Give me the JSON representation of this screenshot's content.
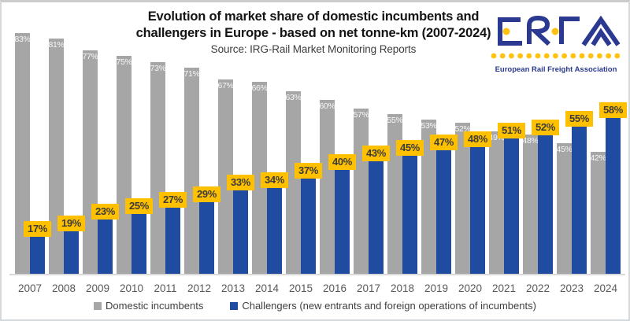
{
  "header": {
    "title_line1": "Evolution of market share of domestic incumbents and",
    "title_line2": "challengers in Europe - based on net tonne-km (2007-2024)",
    "source": "Source:  IRG-Rail Market Monitoring Reports"
  },
  "logo": {
    "name": "ERFA",
    "caption": "European Rail Freight Association",
    "blue": "#2b3990",
    "yellow": "#ffc20e",
    "dot_count": 15
  },
  "chart_data": {
    "type": "bar",
    "title": "Evolution of market share of domestic incumbents and challengers in Europe - based on net tonne-km (2007-2024)",
    "subtitle": "Source: IRG-Rail Market Monitoring Reports",
    "categories": [
      "2007",
      "2008",
      "2009",
      "2010",
      "2011",
      "2012",
      "2013",
      "2014",
      "2015",
      "2016",
      "2017",
      "2018",
      "2019",
      "2020",
      "2021",
      "2022",
      "2023",
      "2024"
    ],
    "series": [
      {
        "name": "Domestic incumbents",
        "color": "#a6a6a6",
        "label_style": "white-inside-top",
        "values": [
          83,
          81,
          77,
          75,
          73,
          71,
          67,
          66,
          63,
          60,
          57,
          55,
          53,
          52,
          49,
          48,
          45,
          42
        ]
      },
      {
        "name": "Challengers (new entrants and foreign operations of incumbents)",
        "color": "#1f4ba0",
        "label_bg": "#ffc000",
        "label_color": "#3b3b3b",
        "label_style": "yellow-badge-at-top",
        "values": [
          17,
          19,
          23,
          25,
          27,
          29,
          33,
          34,
          37,
          40,
          43,
          45,
          47,
          48,
          51,
          52,
          55,
          58
        ]
      }
    ],
    "value_suffix": "%",
    "xlabel": "",
    "ylabel": "",
    "ylim": [
      0,
      100
    ],
    "grid": false,
    "legend_position": "bottom",
    "axis_line_color": "#d9d9d9",
    "tick_label_color": "#595959"
  }
}
